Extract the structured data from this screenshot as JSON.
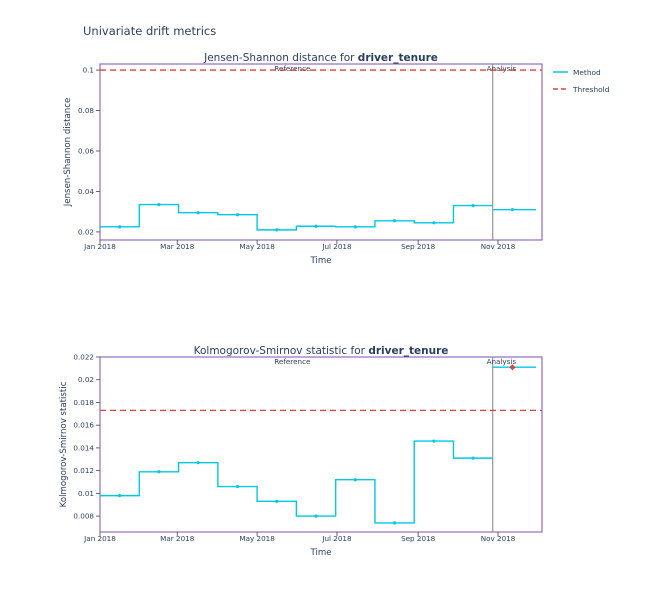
{
  "page": {
    "title": "Univariate drift metrics"
  },
  "legend": [
    {
      "name": "Method",
      "color": "#00c8e5",
      "style": "solid"
    },
    {
      "name": "Threshold",
      "color": "#dd4040",
      "style": "dashed"
    }
  ],
  "chart_data": [
    {
      "type": "line",
      "line_shape": "step",
      "title_prefix": "Jensen-Shannon distance for ",
      "title_feature": "driver_tenure",
      "xlabel": "Time",
      "ylabel": "Jensen-Shannon distance",
      "x_ticks": [
        "Jan 2018",
        "Mar 2018",
        "May 2018",
        "Jul 2018",
        "Sep 2018",
        "Nov 2018"
      ],
      "ylim": [
        0.016,
        0.103
      ],
      "y_ticks": [
        0.02,
        0.04,
        0.06,
        0.08,
        0.1
      ],
      "y_tick_labels": [
        "0.02",
        "0.04",
        "0.06",
        "0.08",
        "0.1"
      ],
      "period_labels": {
        "reference": "Reference",
        "analysis": "Analysis"
      },
      "threshold": 0.1,
      "series": [
        {
          "name": "Method",
          "x": [
            "2018-01-16",
            "2018-02-15",
            "2018-03-17",
            "2018-04-16",
            "2018-05-16",
            "2018-06-15",
            "2018-07-15",
            "2018-08-14",
            "2018-09-13",
            "2018-10-13",
            "2018-11-12"
          ],
          "values": [
            0.0225,
            0.0335,
            0.0295,
            0.0285,
            0.021,
            0.0228,
            0.0225,
            0.0255,
            0.0245,
            0.033,
            0.031
          ],
          "period": [
            "reference",
            "reference",
            "reference",
            "reference",
            "reference",
            "reference",
            "reference",
            "reference",
            "reference",
            "reference",
            "analysis"
          ]
        }
      ],
      "alerts": []
    },
    {
      "type": "line",
      "line_shape": "step",
      "title_prefix": "Kolmogorov-Smirnov statistic for ",
      "title_feature": "driver_tenure",
      "xlabel": "Time",
      "ylabel": "Kolmogorov-Smirnov statistic",
      "x_ticks": [
        "Jan 2018",
        "Mar 2018",
        "May 2018",
        "Jul 2018",
        "Sep 2018",
        "Nov 2018"
      ],
      "ylim": [
        0.0066,
        0.022
      ],
      "y_ticks": [
        0.008,
        0.01,
        0.012,
        0.014,
        0.016,
        0.018,
        0.02,
        0.022
      ],
      "y_tick_labels": [
        "0.008",
        "0.01",
        "0.012",
        "0.014",
        "0.016",
        "0.018",
        "0.02",
        "0.022"
      ],
      "period_labels": {
        "reference": "Reference",
        "analysis": "Analysis"
      },
      "threshold": 0.0173,
      "series": [
        {
          "name": "Method",
          "x": [
            "2018-01-16",
            "2018-02-15",
            "2018-03-17",
            "2018-04-16",
            "2018-05-16",
            "2018-06-15",
            "2018-07-15",
            "2018-08-14",
            "2018-09-13",
            "2018-10-13",
            "2018-11-12"
          ],
          "values": [
            0.0098,
            0.0119,
            0.0127,
            0.0106,
            0.0093,
            0.008,
            0.0112,
            0.0074,
            0.0146,
            0.0131,
            0.0211
          ],
          "period": [
            "reference",
            "reference",
            "reference",
            "reference",
            "reference",
            "reference",
            "reference",
            "reference",
            "reference",
            "reference",
            "analysis"
          ]
        }
      ],
      "alerts": [
        "2018-11-12"
      ]
    }
  ]
}
